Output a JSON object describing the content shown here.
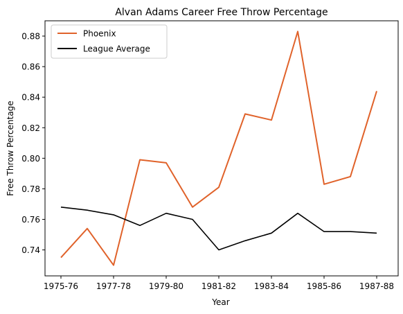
{
  "chart_data": {
    "type": "line",
    "title": "Alvan Adams Career Free Throw Percentage",
    "xlabel": "Year",
    "ylabel": "Free Throw Percentage",
    "categories": [
      "1975-76",
      "1976-77",
      "1977-78",
      "1978-79",
      "1979-80",
      "1980-81",
      "1981-82",
      "1982-83",
      "1983-84",
      "1984-85",
      "1985-86",
      "1986-87",
      "1987-88"
    ],
    "xtick_labels": [
      "1975-76",
      "1977-78",
      "1979-80",
      "1981-82",
      "1983-84",
      "1985-86",
      "1987-88"
    ],
    "ylim": [
      0.723,
      0.89
    ],
    "yticks": [
      0.74,
      0.76,
      0.78,
      0.8,
      0.82,
      0.84,
      0.86,
      0.88
    ],
    "ytick_labels": [
      "0.74",
      "0.76",
      "0.78",
      "0.80",
      "0.82",
      "0.84",
      "0.86",
      "0.88"
    ],
    "grid": false,
    "legend_position": "top-left",
    "series": [
      {
        "name": "Phoenix",
        "color": "#e0622a",
        "values": [
          0.735,
          0.754,
          0.73,
          0.799,
          0.797,
          0.768,
          0.781,
          0.829,
          0.825,
          0.883,
          0.783,
          0.788,
          0.844
        ]
      },
      {
        "name": "League Average",
        "color": "#000000",
        "values": [
          0.768,
          0.766,
          0.763,
          0.756,
          0.764,
          0.76,
          0.74,
          0.746,
          0.751,
          0.764,
          0.752,
          0.752,
          0.751
        ]
      }
    ]
  }
}
